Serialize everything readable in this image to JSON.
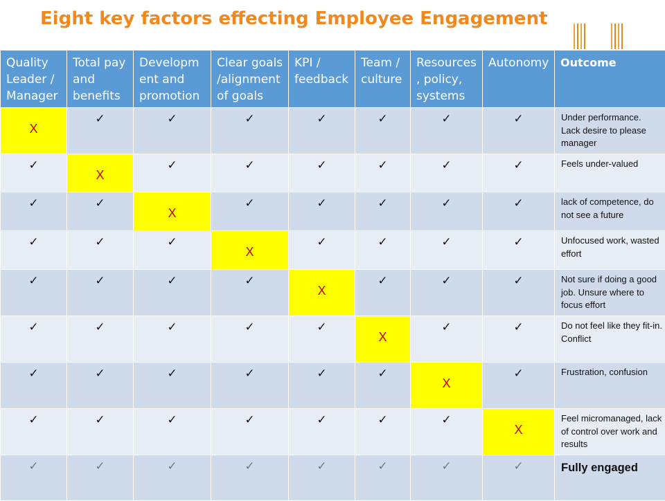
{
  "title": "Eight key factors effecting Employee Engagement",
  "colors": {
    "title": "#f0881f",
    "header_bg": "#5b9bd5",
    "row_band_a": "#cfdbeb",
    "row_band_b": "#e8edf5",
    "missing_factor_bg": "#ffff00",
    "missing_factor_text": "#cc0000"
  },
  "symbols": {
    "present": "✓",
    "missing": "X"
  },
  "headers": [
    "Quality Leader / Manager",
    "Total pay and benefits",
    "Developm ent and promotion",
    "Clear goals /alignment of goals",
    "KPI / feedback",
    "Team / culture",
    "Resources , policy, systems",
    "Autonomy",
    "Outcome"
  ],
  "rows": [
    {
      "missing_factor_index": 0,
      "outcome": "Under performance. Lack desire to please manager"
    },
    {
      "missing_factor_index": 1,
      "outcome": "Feels under-valued"
    },
    {
      "missing_factor_index": 2,
      "outcome": "lack of competence, do not see a future"
    },
    {
      "missing_factor_index": 3,
      "outcome": "Unfocused work, wasted effort"
    },
    {
      "missing_factor_index": 4,
      "outcome": "Not sure if doing a good job. Unsure where to focus effort"
    },
    {
      "missing_factor_index": 5,
      "outcome": "Do not feel like they fit-in. Conflict"
    },
    {
      "missing_factor_index": 6,
      "outcome": "Frustration, confusion"
    },
    {
      "missing_factor_index": 7,
      "outcome": "Feel micromanaged, lack of control over work and results"
    },
    {
      "missing_factor_index": null,
      "outcome": "Fully engaged"
    }
  ]
}
